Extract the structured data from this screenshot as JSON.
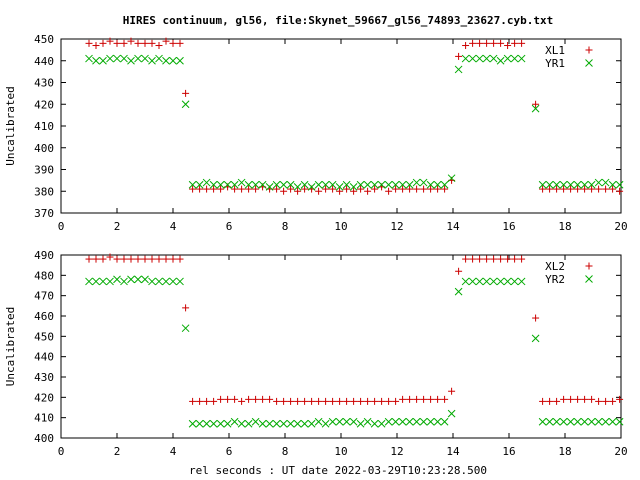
{
  "title": "HIRES continuum, gl56, file:Skynet_59667_gl56_74893_23627.cyb.txt",
  "xlabel": "rel seconds : UT date 2022-03-29T10:23:28.500",
  "chart_data": [
    {
      "type": "scatter",
      "ylabel": "Uncalibrated",
      "xlim": [
        0,
        20
      ],
      "ylim": [
        370,
        450
      ],
      "xticks": [
        "0",
        "2",
        "4",
        "6",
        "8",
        "10",
        "12",
        "14",
        "16",
        "18",
        "20"
      ],
      "yticks": [
        "370",
        "380",
        "390",
        "400",
        "410",
        "420",
        "430",
        "440",
        "450"
      ],
      "legend_position": "top-right",
      "x": [
        1.0,
        1.25,
        1.5,
        1.75,
        2.0,
        2.25,
        2.5,
        2.75,
        3.0,
        3.25,
        3.5,
        3.75,
        4.0,
        4.25,
        4.45,
        4.7,
        4.95,
        5.2,
        5.45,
        5.7,
        5.95,
        6.2,
        6.45,
        6.7,
        6.95,
        7.2,
        7.45,
        7.7,
        7.95,
        8.2,
        8.45,
        8.7,
        8.95,
        9.2,
        9.45,
        9.7,
        9.95,
        10.2,
        10.45,
        10.7,
        10.95,
        11.2,
        11.45,
        11.7,
        11.95,
        12.2,
        12.45,
        12.7,
        12.95,
        13.2,
        13.45,
        13.7,
        13.95,
        14.2,
        14.45,
        14.7,
        14.95,
        15.2,
        15.45,
        15.7,
        15.95,
        16.2,
        16.45,
        16.7,
        16.95,
        17.2,
        17.45,
        17.7,
        17.95,
        18.2,
        18.45,
        18.7,
        18.95,
        19.2,
        19.45,
        19.7,
        19.95
      ],
      "series": [
        {
          "name": "XL1",
          "marker": "plus",
          "color": "#cc0000",
          "values": [
            448,
            447,
            448,
            449,
            448,
            448,
            449,
            448,
            448,
            448,
            447,
            449,
            448,
            448,
            425,
            381,
            381,
            381,
            381,
            381,
            382,
            381,
            381,
            381,
            381,
            382,
            381,
            381,
            380,
            381,
            380,
            381,
            381,
            380,
            381,
            381,
            380,
            381,
            380,
            381,
            380,
            381,
            382,
            380,
            381,
            381,
            381,
            381,
            381,
            381,
            381,
            381,
            385,
            442,
            447,
            448,
            448,
            448,
            448,
            448,
            447,
            448,
            448,
            null,
            420,
            381,
            381,
            381,
            381,
            381,
            381,
            381,
            381,
            381,
            381,
            381,
            380
          ]
        },
        {
          "name": "YR1",
          "marker": "x",
          "color": "#00aa00",
          "values": [
            441,
            440,
            440,
            441,
            441,
            441,
            440,
            441,
            441,
            440,
            441,
            440,
            440,
            440,
            420,
            383,
            383,
            384,
            383,
            383,
            383,
            383,
            384,
            383,
            383,
            383,
            382,
            383,
            383,
            383,
            382,
            383,
            382,
            383,
            383,
            383,
            382,
            383,
            382,
            383,
            383,
            383,
            383,
            383,
            383,
            383,
            383,
            384,
            384,
            383,
            383,
            383,
            386,
            436,
            441,
            441,
            441,
            441,
            441,
            440,
            441,
            441,
            441,
            null,
            418,
            383,
            383,
            383,
            383,
            383,
            383,
            383,
            383,
            384,
            384,
            383,
            383
          ]
        }
      ]
    },
    {
      "type": "scatter",
      "ylabel": "Uncalibrated",
      "xlim": [
        0,
        20
      ],
      "ylim": [
        400,
        490
      ],
      "xticks": [
        "0",
        "2",
        "4",
        "6",
        "8",
        "10",
        "12",
        "14",
        "16",
        "18",
        "20"
      ],
      "yticks": [
        "400",
        "410",
        "420",
        "430",
        "440",
        "450",
        "460",
        "470",
        "480",
        "490"
      ],
      "legend_position": "top-right",
      "x": [
        1.0,
        1.25,
        1.5,
        1.75,
        2.0,
        2.25,
        2.5,
        2.75,
        3.0,
        3.25,
        3.5,
        3.75,
        4.0,
        4.25,
        4.45,
        4.7,
        4.95,
        5.2,
        5.45,
        5.7,
        5.95,
        6.2,
        6.45,
        6.7,
        6.95,
        7.2,
        7.45,
        7.7,
        7.95,
        8.2,
        8.45,
        8.7,
        8.95,
        9.2,
        9.45,
        9.7,
        9.95,
        10.2,
        10.45,
        10.7,
        10.95,
        11.2,
        11.45,
        11.7,
        11.95,
        12.2,
        12.45,
        12.7,
        12.95,
        13.2,
        13.45,
        13.7,
        13.95,
        14.2,
        14.45,
        14.7,
        14.95,
        15.2,
        15.45,
        15.7,
        15.95,
        16.2,
        16.45,
        16.7,
        16.95,
        17.2,
        17.45,
        17.7,
        17.95,
        18.2,
        18.45,
        18.7,
        18.95,
        19.2,
        19.45,
        19.7,
        19.95
      ],
      "series": [
        {
          "name": "XL2",
          "marker": "plus",
          "color": "#cc0000",
          "values": [
            488,
            488,
            488,
            489,
            488,
            488,
            488,
            488,
            488,
            488,
            488,
            488,
            488,
            488,
            464,
            418,
            418,
            418,
            418,
            419,
            419,
            419,
            418,
            419,
            419,
            419,
            419,
            418,
            418,
            418,
            418,
            418,
            418,
            418,
            418,
            418,
            418,
            418,
            418,
            418,
            418,
            418,
            418,
            418,
            418,
            419,
            419,
            419,
            419,
            419,
            419,
            419,
            423,
            482,
            488,
            488,
            488,
            488,
            488,
            488,
            488,
            488,
            488,
            null,
            459,
            418,
            418,
            418,
            419,
            419,
            419,
            419,
            419,
            418,
            418,
            418,
            419
          ]
        },
        {
          "name": "YR2",
          "marker": "x",
          "color": "#00aa00",
          "values": [
            477,
            477,
            477,
            477,
            478,
            477,
            478,
            478,
            478,
            477,
            477,
            477,
            477,
            477,
            454,
            407,
            407,
            407,
            407,
            407,
            407,
            408,
            407,
            407,
            408,
            407,
            407,
            407,
            407,
            407,
            407,
            407,
            407,
            408,
            407,
            408,
            408,
            408,
            408,
            407,
            408,
            407,
            407,
            408,
            408,
            408,
            408,
            408,
            408,
            408,
            408,
            408,
            412,
            472,
            477,
            477,
            477,
            477,
            477,
            477,
            477,
            477,
            477,
            null,
            449,
            408,
            408,
            408,
            408,
            408,
            408,
            408,
            408,
            408,
            408,
            408,
            408
          ]
        }
      ]
    }
  ]
}
